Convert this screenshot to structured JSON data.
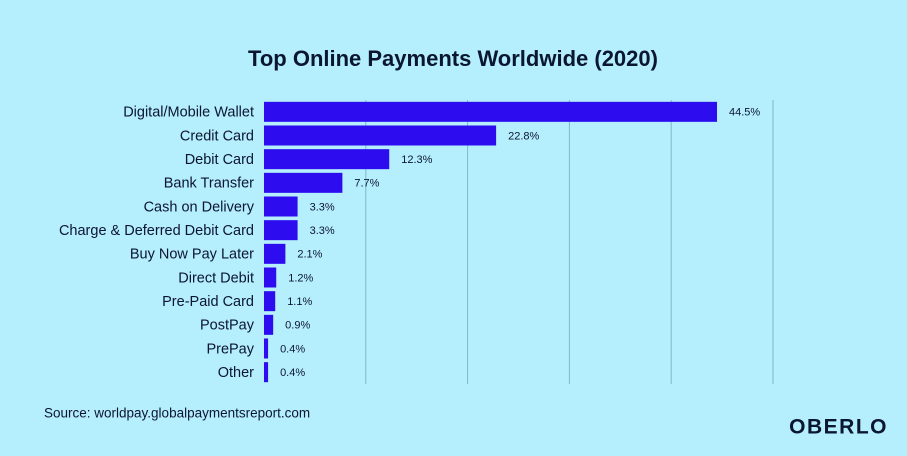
{
  "chart_data": {
    "type": "hbar",
    "title": "Top Online Payments Worldwide (2020)",
    "categories": [
      "Digital/Mobile Wallet",
      "Credit Card",
      "Debit Card",
      "Bank Transfer",
      "Cash on Delivery",
      "Charge & Deferred Debit Card",
      "Buy Now Pay Later",
      "Direct Debit",
      "Pre-Paid Card",
      "PostPay",
      "PrePay",
      "Other"
    ],
    "values": [
      44.5,
      22.8,
      12.3,
      7.7,
      3.3,
      3.3,
      2.1,
      1.2,
      1.1,
      0.9,
      0.4,
      0.4
    ],
    "value_labels": [
      "44.5%",
      "22.8%",
      "12.3%",
      "7.7%",
      "3.3%",
      "3.3%",
      "2.1%",
      "1.2%",
      "1.1%",
      "0.9%",
      "0.4%",
      "0.4%"
    ],
    "color": "#2e0cf0",
    "xlim": [
      0,
      50
    ],
    "xticks": [
      10,
      20,
      30,
      40,
      50
    ],
    "grid": true,
    "source": "Source: worldpay.globalpaymentsreport.com",
    "logo": "OBERLO"
  }
}
